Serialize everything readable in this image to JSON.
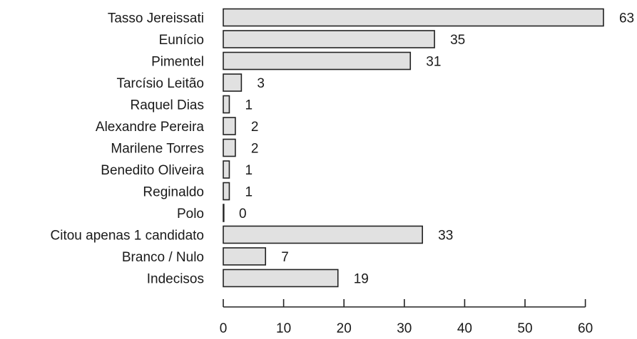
{
  "chart_data": {
    "type": "bar",
    "orientation": "horizontal",
    "categories": [
      "Tasso Jereissati",
      "Eunício",
      "Pimentel",
      "Tarcísio Leitão",
      "Raquel Dias",
      "Alexandre Pereira",
      "Marilene Torres",
      "Benedito Oliveira",
      "Reginaldo",
      "Polo",
      "Citou apenas 1 candidato",
      "Branco / Nulo",
      "Indecisos"
    ],
    "values": [
      63,
      35,
      31,
      3,
      1,
      2,
      2,
      1,
      1,
      0,
      33,
      7,
      19
    ],
    "value_labels": [
      "63",
      "35",
      "31",
      "3",
      "1",
      "2",
      "2",
      "1",
      "1",
      "0",
      "33",
      "7",
      "19"
    ],
    "xticks": [
      "0",
      "10",
      "20",
      "30",
      "40",
      "50",
      "60"
    ],
    "xlim": [
      0,
      63
    ],
    "grid": false,
    "bar_color": "#e1e1e1",
    "edge_color": "#222222"
  }
}
